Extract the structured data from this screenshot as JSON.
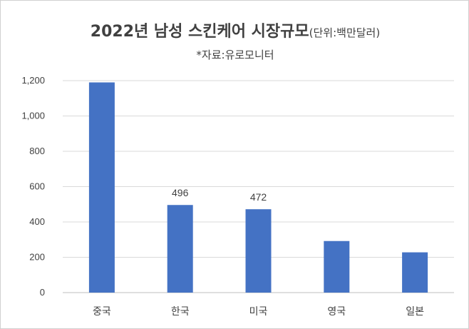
{
  "chart_data": {
    "type": "bar",
    "title": "2022년 남성 스킨케어 시장규모",
    "title_unit": "(단위:백만달러)",
    "subtitle": "*자료:유로모니터",
    "categories": [
      "중국",
      "한국",
      "미국",
      "영국",
      "일본"
    ],
    "values": [
      1190,
      496,
      472,
      292,
      228
    ],
    "data_labels": [
      "",
      "496",
      "472",
      "",
      ""
    ],
    "ylim": [
      0,
      1200
    ],
    "yticks": [
      0,
      200,
      400,
      600,
      800,
      1000,
      1200
    ],
    "ytick_labels": [
      "0",
      "200",
      "400",
      "600",
      "800",
      "1,000",
      "1,200"
    ],
    "bar_color": "#4472C4",
    "grid": true,
    "legend": "none"
  }
}
